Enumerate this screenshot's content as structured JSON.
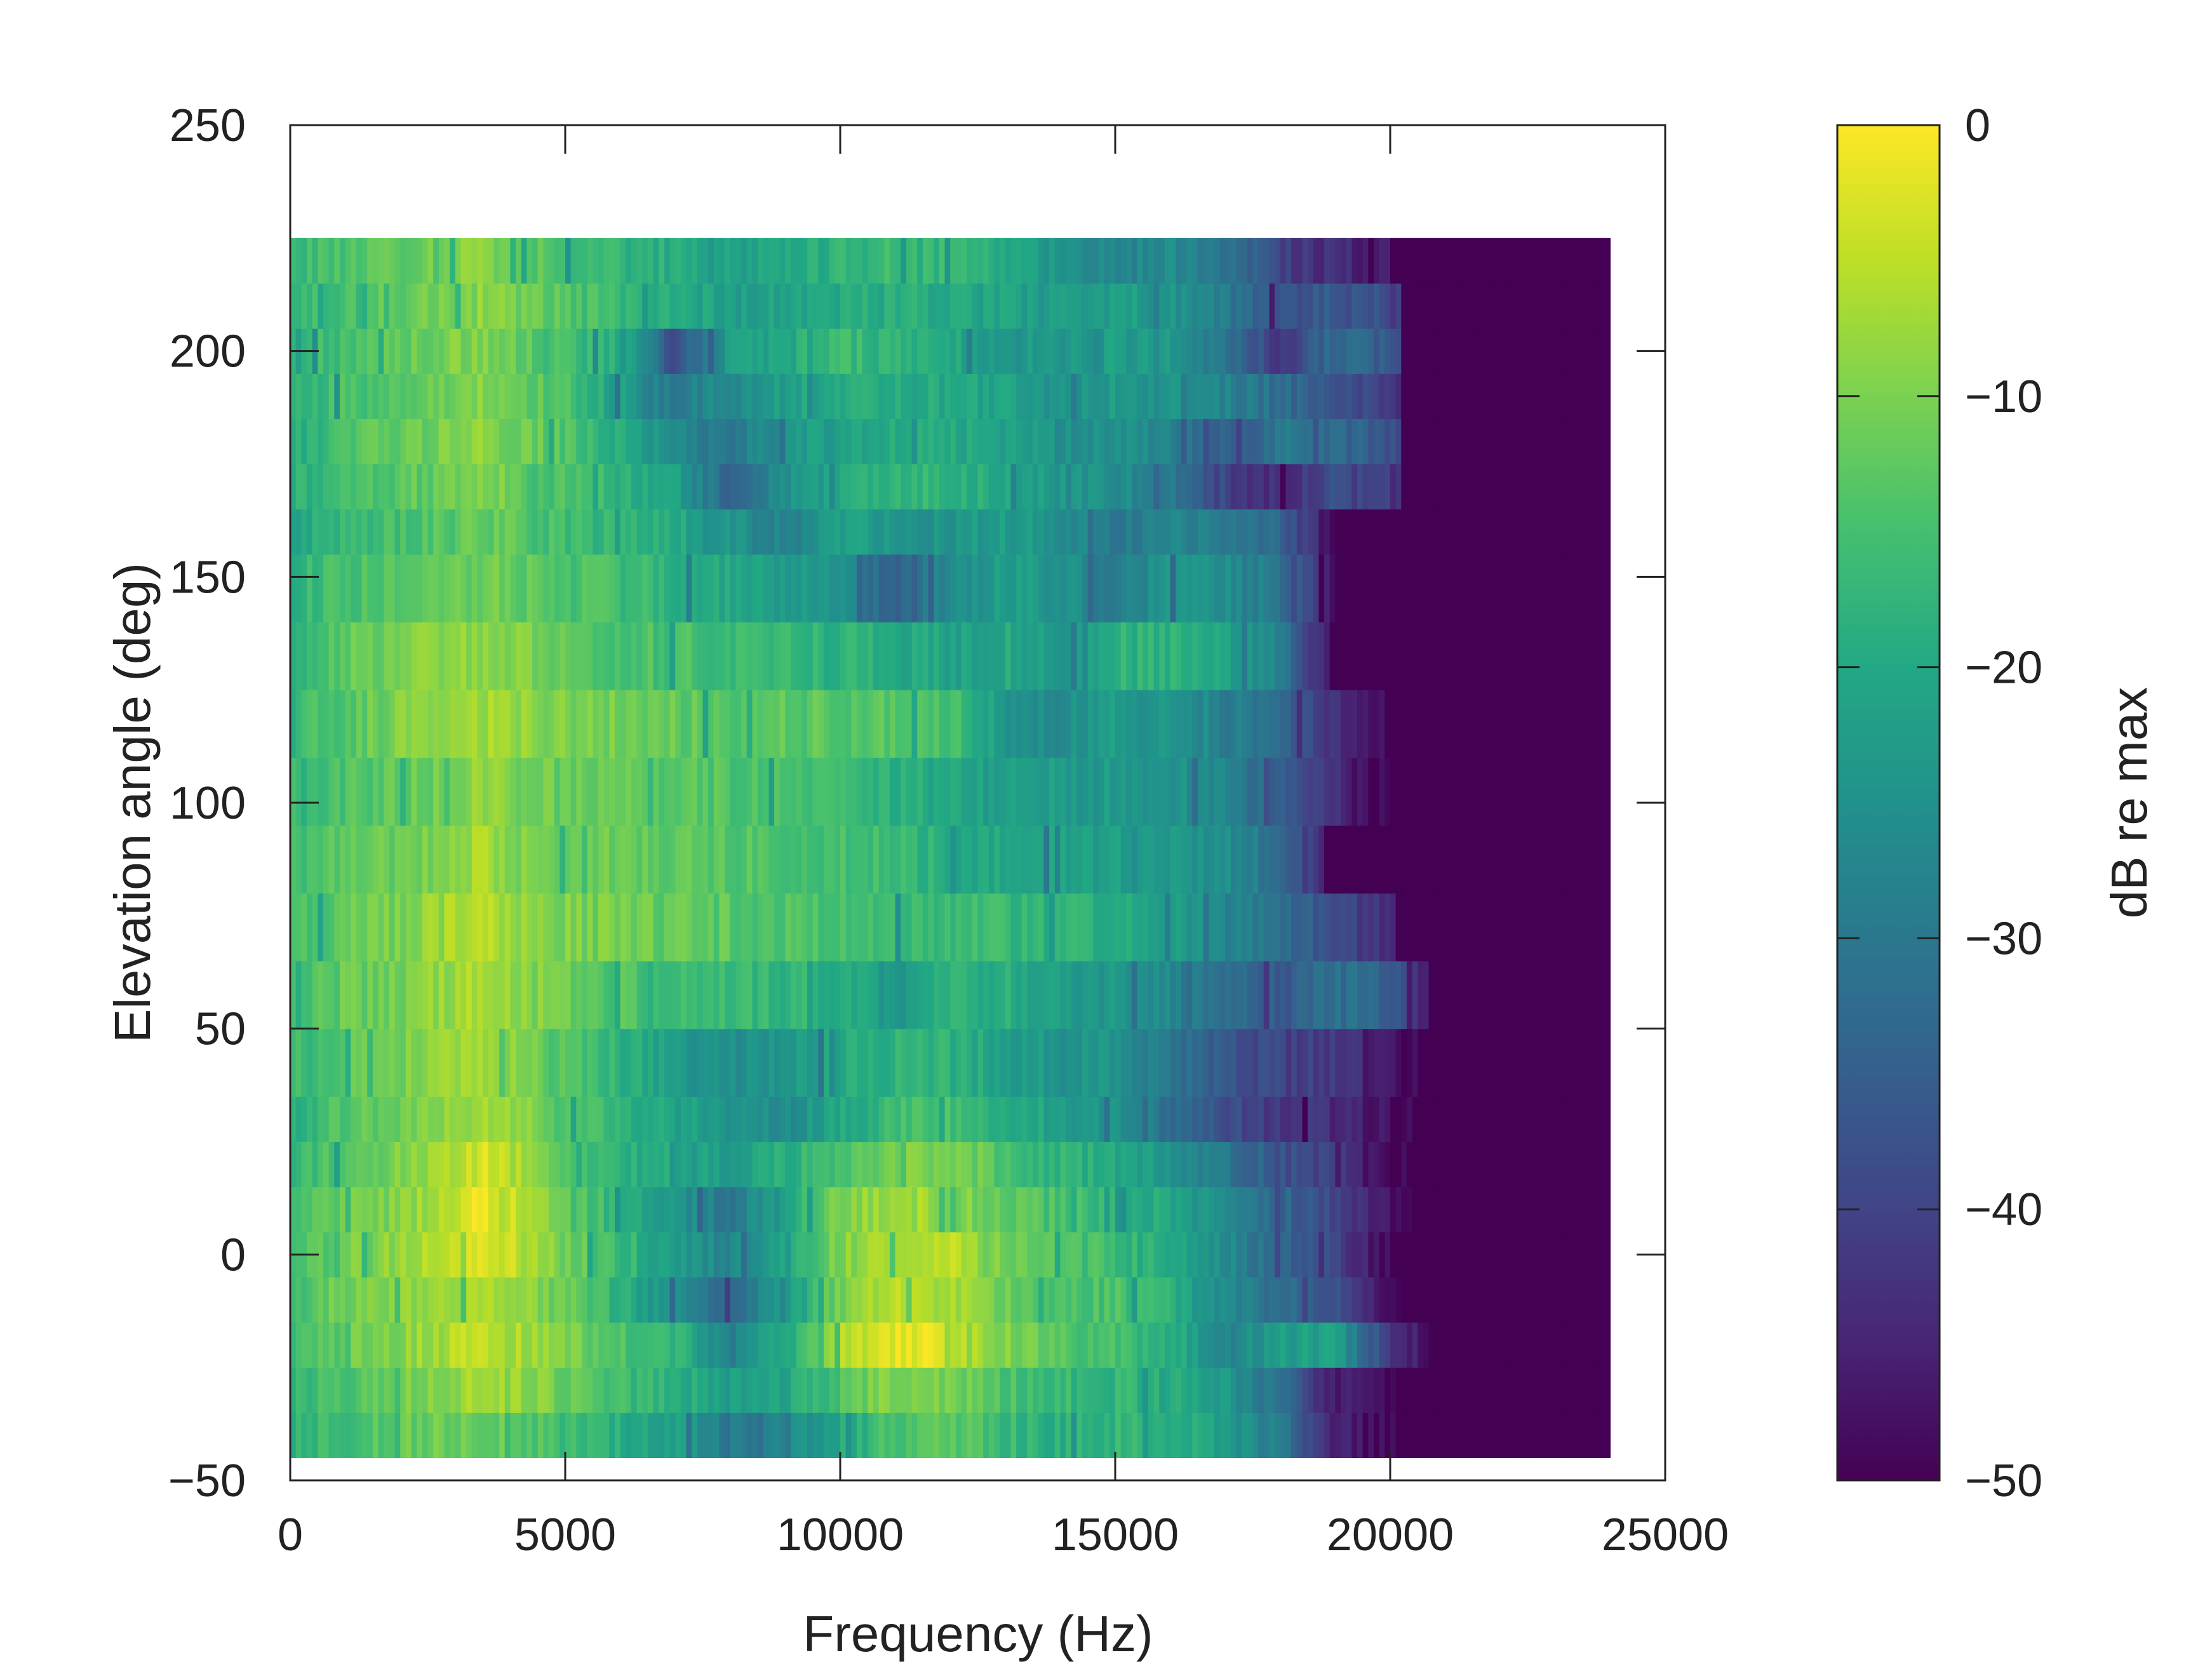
{
  "chart_data": {
    "type": "heatmap",
    "xlabel": "Frequency (Hz)",
    "ylabel": "Elevation angle (deg)",
    "colorbar_label": "dB re max",
    "xlim": [
      0,
      25000
    ],
    "ylim": [
      -50,
      250
    ],
    "x_ticks": [
      "0",
      "5000",
      "10000",
      "15000",
      "20000",
      "25000"
    ],
    "y_ticks": [
      "−50",
      "0",
      "50",
      "100",
      "150",
      "200",
      "250"
    ],
    "colorbar_ticks": [
      "0",
      "−10",
      "−20",
      "−30",
      "−40",
      "−50"
    ],
    "zlim": [
      -50,
      0
    ],
    "colormap": "viridis",
    "data_extent": {
      "x": [
        0,
        24000
      ],
      "y": [
        -45,
        225
      ]
    },
    "freq_knots": [
      0,
      1000,
      2000,
      3000,
      3500,
      4000,
      5000,
      6000,
      7000,
      8000,
      9000,
      10000,
      11000,
      12000,
      13000,
      14000,
      15000,
      16000,
      17000,
      18000,
      19000,
      20000,
      21000,
      24000
    ],
    "rows": [
      {
        "elev": [
          -45,
          -35
        ],
        "cutoff": 20200,
        "db": [
          -18,
          -15,
          -12,
          -11,
          -11,
          -12,
          -16,
          -19,
          -22,
          -30,
          -28,
          -20,
          -14,
          -13,
          -16,
          -19,
          -17,
          -18,
          -22,
          -30,
          -46,
          -50,
          -50,
          -50
        ]
      },
      {
        "elev": [
          -35,
          -25
        ],
        "cutoff": 20100,
        "db": [
          -17,
          -14,
          -11,
          -8,
          -6,
          -7,
          -12,
          -16,
          -18,
          -22,
          -20,
          -14,
          -9,
          -10,
          -14,
          -17,
          -17,
          -19,
          -24,
          -32,
          -46,
          -50,
          -50,
          -50
        ]
      },
      {
        "elev": [
          -25,
          -15
        ],
        "cutoff": 20800,
        "db": [
          -16,
          -12,
          -9,
          -6,
          -5,
          -6,
          -10,
          -14,
          -17,
          -28,
          -20,
          -6,
          -2,
          -3,
          -9,
          -14,
          -15,
          -18,
          -28,
          -22,
          -22,
          -42,
          -50,
          -50
        ]
      },
      {
        "elev": [
          -15,
          -5
        ],
        "cutoff": 20200,
        "db": [
          -15,
          -11,
          -9,
          -7,
          -6,
          -7,
          -12,
          -18,
          -26,
          -34,
          -22,
          -10,
          -6,
          -6,
          -11,
          -14,
          -14,
          -19,
          -27,
          -32,
          -38,
          -50,
          -50,
          -50
        ]
      },
      {
        "elev": [
          -5,
          5
        ],
        "cutoff": 20000,
        "db": [
          -15,
          -11,
          -8,
          -5,
          -2,
          -4,
          -11,
          -16,
          -22,
          -28,
          -19,
          -10,
          -6,
          -5,
          -10,
          -14,
          -16,
          -20,
          -26,
          -34,
          -40,
          -50,
          -50,
          -50
        ]
      },
      {
        "elev": [
          5,
          15
        ],
        "cutoff": 20500,
        "db": [
          -15,
          -12,
          -9,
          -4,
          -1,
          -4,
          -12,
          -18,
          -24,
          -30,
          -20,
          -10,
          -7,
          -8,
          -12,
          -15,
          -17,
          -21,
          -27,
          -33,
          -40,
          -48,
          -50,
          -50
        ]
      },
      {
        "elev": [
          15,
          25
        ],
        "cutoff": 20300,
        "db": [
          -17,
          -13,
          -10,
          -6,
          -3,
          -6,
          -13,
          -18,
          -20,
          -22,
          -19,
          -14,
          -10,
          -10,
          -14,
          -18,
          -20,
          -24,
          -30,
          -37,
          -42,
          -50,
          -50,
          -50
        ]
      },
      {
        "elev": [
          25,
          35
        ],
        "cutoff": 20500,
        "db": [
          -18,
          -14,
          -11,
          -8,
          -6,
          -8,
          -14,
          -18,
          -21,
          -24,
          -26,
          -20,
          -16,
          -15,
          -18,
          -22,
          -24,
          -32,
          -38,
          -42,
          -44,
          -48,
          -50,
          -50
        ]
      },
      {
        "elev": [
          35,
          50
        ],
        "cutoff": 20500,
        "db": [
          -17,
          -13,
          -11,
          -8,
          -7,
          -9,
          -14,
          -18,
          -22,
          -26,
          -24,
          -20,
          -18,
          -18,
          -21,
          -25,
          -24,
          -30,
          -36,
          -40,
          -42,
          -48,
          -50,
          -50
        ]
      },
      {
        "elev": [
          50,
          65
        ],
        "cutoff": 20700,
        "db": [
          -16,
          -12,
          -10,
          -7,
          -5,
          -8,
          -12,
          -14,
          -15,
          -16,
          -17,
          -19,
          -24,
          -18,
          -19,
          -22,
          -24,
          -27,
          -32,
          -36,
          -30,
          -36,
          -50,
          -50
        ]
      },
      {
        "elev": [
          65,
          80
        ],
        "cutoff": 20100,
        "db": [
          -16,
          -12,
          -10,
          -7,
          -6,
          -8,
          -10,
          -11,
          -12,
          -13,
          -14,
          -15,
          -16,
          -16,
          -17,
          -18,
          -19,
          -21,
          -27,
          -33,
          -38,
          -44,
          -50,
          -50
        ]
      },
      {
        "elev": [
          80,
          95
        ],
        "cutoff": 18800,
        "db": [
          -16,
          -13,
          -11,
          -8,
          -7,
          -9,
          -11,
          -12,
          -12,
          -13,
          -14,
          -15,
          -17,
          -19,
          -20,
          -22,
          -22,
          -23,
          -26,
          -32,
          -50,
          -50,
          -50,
          -50
        ]
      },
      {
        "elev": [
          95,
          110
        ],
        "cutoff": 20000,
        "db": [
          -17,
          -14,
          -12,
          -10,
          -9,
          -10,
          -12,
          -13,
          -13,
          -14,
          -15,
          -16,
          -18,
          -20,
          -22,
          -23,
          -23,
          -24,
          -28,
          -34,
          -44,
          -50,
          -50,
          -50
        ]
      },
      {
        "elev": [
          110,
          125
        ],
        "cutoff": 20000,
        "db": [
          -17,
          -13,
          -10,
          -8,
          -7,
          -8,
          -10,
          -11,
          -12,
          -13,
          -13,
          -13,
          -13,
          -15,
          -24,
          -26,
          -23,
          -24,
          -28,
          -34,
          -44,
          -50,
          -50,
          -50
        ]
      },
      {
        "elev": [
          125,
          140
        ],
        "cutoff": 19000,
        "db": [
          -17,
          -12,
          -10,
          -9,
          -8,
          -9,
          -12,
          -14,
          -15,
          -16,
          -17,
          -18,
          -20,
          -21,
          -20,
          -24,
          -18,
          -18,
          -22,
          -28,
          -50,
          -50,
          -50,
          -50
        ]
      },
      {
        "elev": [
          140,
          155
        ],
        "cutoff": 19000,
        "db": [
          -18,
          -15,
          -13,
          -12,
          -11,
          -12,
          -14,
          -16,
          -18,
          -20,
          -22,
          -24,
          -36,
          -26,
          -22,
          -24,
          -30,
          -24,
          -26,
          -30,
          -50,
          -50,
          -50,
          -50
        ]
      },
      {
        "elev": [
          155,
          165
        ],
        "cutoff": 19000,
        "db": [
          -20,
          -17,
          -15,
          -13,
          -12,
          -13,
          -16,
          -18,
          -20,
          -25,
          -28,
          -22,
          -24,
          -24,
          -22,
          -26,
          -30,
          -26,
          -30,
          -34,
          -50,
          -50,
          -50,
          -50
        ]
      },
      {
        "elev": [
          165,
          175
        ],
        "cutoff": 20200,
        "db": [
          -19,
          -15,
          -13,
          -11,
          -10,
          -11,
          -14,
          -18,
          -22,
          -34,
          -26,
          -20,
          -18,
          -17,
          -20,
          -24,
          -25,
          -30,
          -40,
          -44,
          -38,
          -42,
          -50,
          -50
        ]
      },
      {
        "elev": [
          175,
          185
        ],
        "cutoff": 20200,
        "db": [
          -19,
          -15,
          -12,
          -10,
          -9,
          -10,
          -14,
          -20,
          -26,
          -30,
          -24,
          -21,
          -20,
          -20,
          -22,
          -25,
          -24,
          -28,
          -36,
          -30,
          -32,
          -38,
          -50,
          -50
        ]
      },
      {
        "elev": [
          185,
          195
        ],
        "cutoff": 20200,
        "db": [
          -18,
          -15,
          -12,
          -10,
          -9,
          -11,
          -15,
          -22,
          -30,
          -26,
          -22,
          -19,
          -19,
          -20,
          -22,
          -24,
          -23,
          -25,
          -28,
          -32,
          -36,
          -42,
          -50,
          -50
        ]
      },
      {
        "elev": [
          195,
          205
        ],
        "cutoff": 20200,
        "db": [
          -18,
          -15,
          -12,
          -10,
          -9,
          -11,
          -15,
          -19,
          -38,
          -22,
          -20,
          -16,
          -18,
          -20,
          -23,
          -24,
          -22,
          -24,
          -30,
          -42,
          -32,
          -36,
          -50,
          -50
        ]
      },
      {
        "elev": [
          205,
          215
        ],
        "cutoff": 20200,
        "db": [
          -18,
          -15,
          -12,
          -10,
          -9,
          -10,
          -14,
          -16,
          -20,
          -22,
          -21,
          -20,
          -19,
          -20,
          -21,
          -23,
          -22,
          -24,
          -30,
          -38,
          -36,
          -38,
          -50,
          -50
        ]
      },
      {
        "elev": [
          215,
          225
        ],
        "cutoff": 20000,
        "db": [
          -17,
          -14,
          -12,
          -10,
          -9,
          -11,
          -15,
          -17,
          -19,
          -20,
          -20,
          -18,
          -16,
          -17,
          -20,
          -24,
          -28,
          -26,
          -30,
          -40,
          -44,
          -46,
          -50,
          -50
        ]
      }
    ]
  }
}
